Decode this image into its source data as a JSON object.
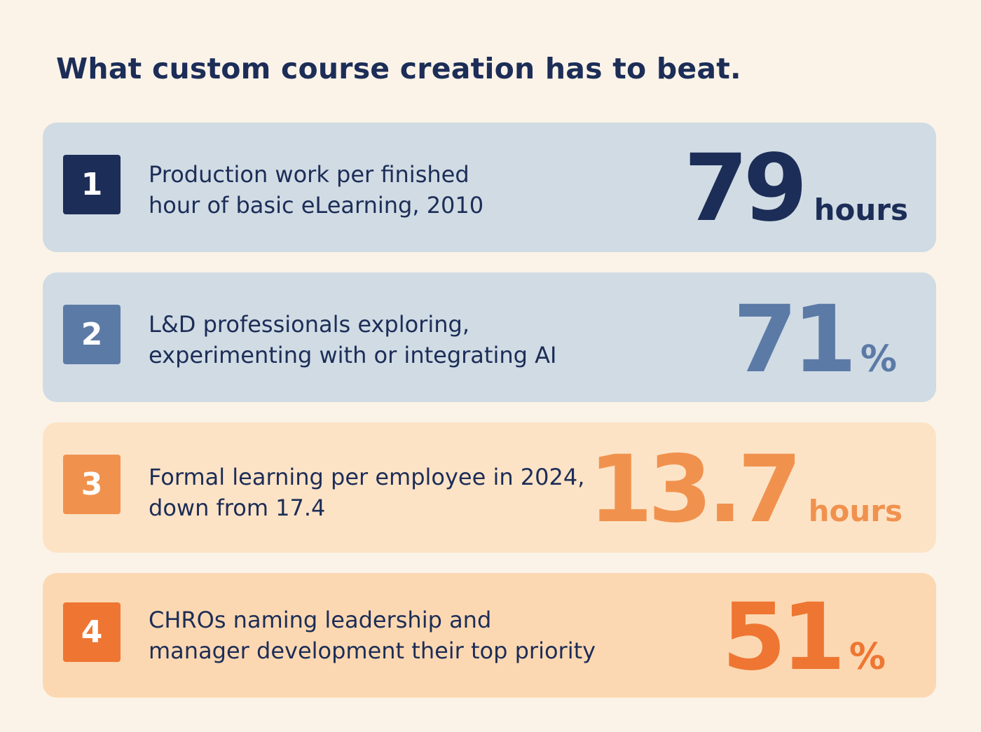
{
  "title": "What custom course creation has to beat.",
  "colors": {
    "background": "#fbf3e8",
    "text_dark": "#1c2d57",
    "card_blue": "#d0dbe4",
    "card_peach_light": "#fde3c6",
    "card_peach": "#fcd8b2",
    "navy": "#1c2d57",
    "steel_blue": "#5b7aa6",
    "orange_light": "#f0924e",
    "orange": "#ee7632"
  },
  "stats": [
    {
      "index": "1",
      "line1": "Production work per finished",
      "line2": "hour of basic eLearning, 2010",
      "value": "79",
      "unit": "hours"
    },
    {
      "index": "2",
      "line1": "L&D professionals exploring,",
      "line2": "experimenting with or integrating AI",
      "value": "71",
      "unit": "%"
    },
    {
      "index": "3",
      "line1": "Formal learning per employee in 2024,",
      "line2": "down from 17.4",
      "value": "13.7",
      "unit": "hours"
    },
    {
      "index": "4",
      "line1": "CHROs naming leadership and",
      "line2": "manager development their top priority",
      "value": "51",
      "unit": "%"
    }
  ]
}
